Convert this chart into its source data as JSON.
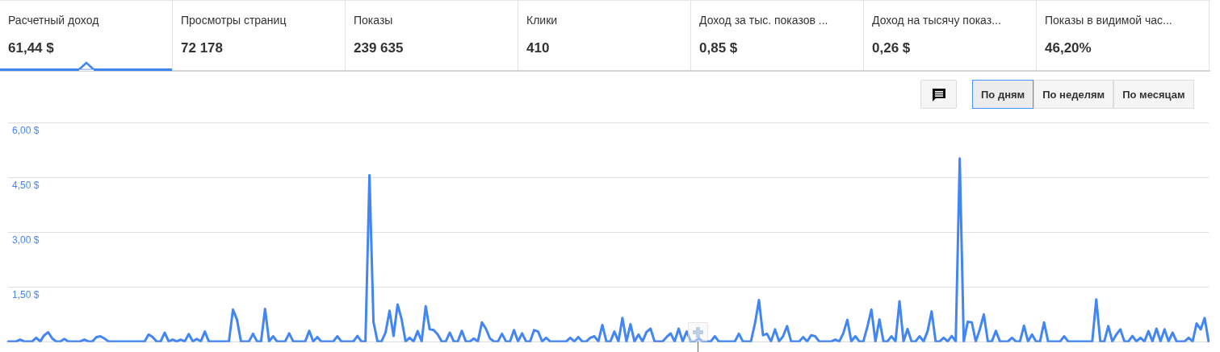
{
  "chart_data": [
    {
      "type": "other",
      "annotations": [
        "Расчетный доход",
        "61,44 $",
        "Просмотры страниц",
        "72 178",
        "Показы",
        "239 635",
        "Клики",
        "410",
        "Доход за тыс. показов ...",
        "0,85 $",
        "Доход на тысячу показ...",
        "0,26 $",
        "Показы в видимой час...",
        "46,20%"
      ]
    },
    {
      "type": "line",
      "annotations": [
        "По дням",
        "По неделям",
        "По месяцам"
      ],
      "categories": [
        null,
        null,
        null,
        null,
        null,
        null,
        null,
        null,
        null,
        null,
        null,
        null,
        null,
        null,
        null,
        null,
        null,
        null,
        null,
        null,
        null,
        null,
        null,
        null,
        null,
        null,
        null,
        null,
        null,
        null,
        null,
        null,
        null,
        null,
        null,
        null,
        null,
        null,
        null,
        null,
        null,
        null,
        null,
        null,
        null,
        null,
        null,
        null,
        null,
        null,
        null,
        null,
        null,
        null,
        null,
        null,
        null,
        null,
        null,
        null,
        null,
        null,
        null,
        null,
        null,
        null,
        null,
        null,
        null,
        null,
        null,
        null,
        null,
        null,
        null,
        null,
        null,
        null,
        null,
        null,
        null,
        null,
        null,
        null,
        null,
        null,
        null,
        null,
        null,
        null,
        null,
        null,
        null,
        null,
        null,
        null,
        null,
        null,
        null,
        null,
        null,
        null,
        null,
        null,
        null,
        null,
        null,
        null,
        null,
        null,
        null,
        null,
        null,
        null,
        null,
        null,
        null,
        null,
        null,
        null,
        null,
        null,
        null,
        null,
        null,
        null,
        null,
        null,
        null,
        null,
        null,
        null,
        null,
        null,
        null,
        null,
        null,
        null,
        null,
        null,
        null,
        null,
        null,
        null,
        null,
        null,
        null,
        null,
        null,
        null,
        null,
        null,
        null,
        null,
        null,
        null,
        null,
        null,
        null,
        null,
        null,
        null,
        null,
        null,
        null,
        null,
        null,
        null,
        null,
        null,
        null,
        null,
        null,
        null,
        null,
        null,
        null,
        null,
        null,
        null,
        null,
        null,
        null,
        null,
        null,
        null,
        null,
        null,
        null,
        null,
        null,
        null,
        null,
        null,
        null,
        null,
        null,
        null,
        null,
        null,
        null,
        null,
        null,
        null,
        null,
        null,
        null,
        null,
        null,
        null,
        null,
        null,
        null,
        null,
        null,
        null,
        null,
        null,
        null,
        null,
        null,
        null,
        null,
        null,
        null,
        null,
        null,
        null,
        null,
        null,
        null,
        null,
        null,
        null,
        null,
        null,
        null,
        null,
        null,
        null,
        null,
        null,
        null,
        null,
        null,
        null,
        null,
        null,
        null,
        null,
        null,
        null,
        null,
        null,
        null,
        null,
        null,
        null,
        null,
        null,
        null,
        null,
        null,
        null,
        null,
        null,
        null,
        null,
        null,
        null,
        null,
        null,
        null,
        null,
        null,
        null,
        null,
        null,
        null,
        null,
        null,
        null,
        null,
        null,
        null,
        null,
        null,
        null,
        null,
        null,
        null,
        null,
        null,
        null,
        null,
        null,
        null,
        null,
        null,
        null
      ],
      "values": [
        0.02,
        0.02,
        0.02,
        0.07,
        0.02,
        0.02,
        0.02,
        0.12,
        0.02,
        0.19,
        0.27,
        0.1,
        0.02,
        0.02,
        0.09,
        0.02,
        0.02,
        0.02,
        0.02,
        0.07,
        0.02,
        0.02,
        0.14,
        0.16,
        0.1,
        0.02,
        0.02,
        0.02,
        0.02,
        0.02,
        0.02,
        0.02,
        0.02,
        0.02,
        0.02,
        0.21,
        0.14,
        0.02,
        0.02,
        0.26,
        0.02,
        0.07,
        0.02,
        0.07,
        0.02,
        0.22,
        0.02,
        0.09,
        0.02,
        0.29,
        0.02,
        0.02,
        0.02,
        0.02,
        0.02,
        0.02,
        0.89,
        0.62,
        0.02,
        0.02,
        0.02,
        0.23,
        0.02,
        0.02,
        0.91,
        0.02,
        0.16,
        0.02,
        0.02,
        0.02,
        0.24,
        0.02,
        0.02,
        0.02,
        0.02,
        0.31,
        0.02,
        0.14,
        0.02,
        0.02,
        0.02,
        0.02,
        0.16,
        0.02,
        0.02,
        0.02,
        0.02,
        0.17,
        0.02,
        0.02,
        4.56,
        0.55,
        0.02,
        0.02,
        0.26,
        0.86,
        0.17,
        1.03,
        0.63,
        0.02,
        0.12,
        0.02,
        0.3,
        0.02,
        0.98,
        0.35,
        0.33,
        0.21,
        0.02,
        0.02,
        0.26,
        0.02,
        0.02,
        0.31,
        0.02,
        0.02,
        0.1,
        0.02,
        0.54,
        0.37,
        0.1,
        0.02,
        0.02,
        0.23,
        0.02,
        0.02,
        0.33,
        0.02,
        0.24,
        0.02,
        0.02,
        0.33,
        0.29,
        0.02,
        0.12,
        0.02,
        0.02,
        0.02,
        0.02,
        0.02,
        0.12,
        0.02,
        0.14,
        0.02,
        0.02,
        0.12,
        0.16,
        0.02,
        0.47,
        0.02,
        0.02,
        0.29,
        0.02,
        0.66,
        0.02,
        0.49,
        0.02,
        0.21,
        0.02,
        0.28,
        0.37,
        0.02,
        0.02,
        0.02,
        0.14,
        0.24,
        0.02,
        0.37,
        0.02,
        0.29,
        0.02,
        0.02,
        0.1,
        0.02,
        0.02,
        0.02,
        0.16,
        0.02,
        0.02,
        0.02,
        0.02,
        0.02,
        0.23,
        0.02,
        0.02,
        0.02,
        0.51,
        1.15,
        0.19,
        0.23,
        0.02,
        0.35,
        0.02,
        0.16,
        0.44,
        0.02,
        0.02,
        0.02,
        0.14,
        0.02,
        0.19,
        0.16,
        0.02,
        0.02,
        0.02,
        0.02,
        0.07,
        0.02,
        0.24,
        0.61,
        0.02,
        0.16,
        0.02,
        0.02,
        0.42,
        0.89,
        0.02,
        0.62,
        0.02,
        0.02,
        0.16,
        0.02,
        1.12,
        0.02,
        0.36,
        0.02,
        0.02,
        0.16,
        0.02,
        0.3,
        0.84,
        0.02,
        0.02,
        0.12,
        0.02,
        0.17,
        0.02,
        5.02,
        0.02,
        0.56,
        0.54,
        0.02,
        0.35,
        0.76,
        0.02,
        0.02,
        0.31,
        0.02,
        0.02,
        0.02,
        0.12,
        0.02,
        0.02,
        0.45,
        0.02,
        0.21,
        0.02,
        0.02,
        0.54,
        0.02,
        0.02,
        0.02,
        0.02,
        0.16,
        0.02,
        0.02,
        0.02,
        0.02,
        0.02,
        0.02,
        0.02,
        1.17,
        0.02,
        0.02,
        0.44,
        0.02,
        0.21,
        0.35,
        0.02,
        0.02,
        0.17,
        0.02,
        0.12,
        0.02,
        0.3,
        0.02,
        0.37,
        0.02,
        0.35,
        0.02,
        0.26,
        0.02,
        0.02,
        0.02,
        0.12,
        0.02,
        0.51,
        0.35,
        0.66,
        0
      ],
      "color": "#4285f4",
      "ylim": [
        0,
        6
      ],
      "yticks": [
        {
          "value": 0,
          "label": null
        },
        {
          "value": 1.5,
          "label": "1,50 $"
        },
        {
          "value": 3,
          "label": "3,00 $"
        },
        {
          "value": 4.5,
          "label": "4,50 $"
        },
        {
          "value": 6,
          "label": "6,00 $"
        }
      ],
      "grid": "y",
      "legend": false,
      "marker": "none",
      "line_style": "solid",
      "tick_labels": "y"
    }
  ]
}
